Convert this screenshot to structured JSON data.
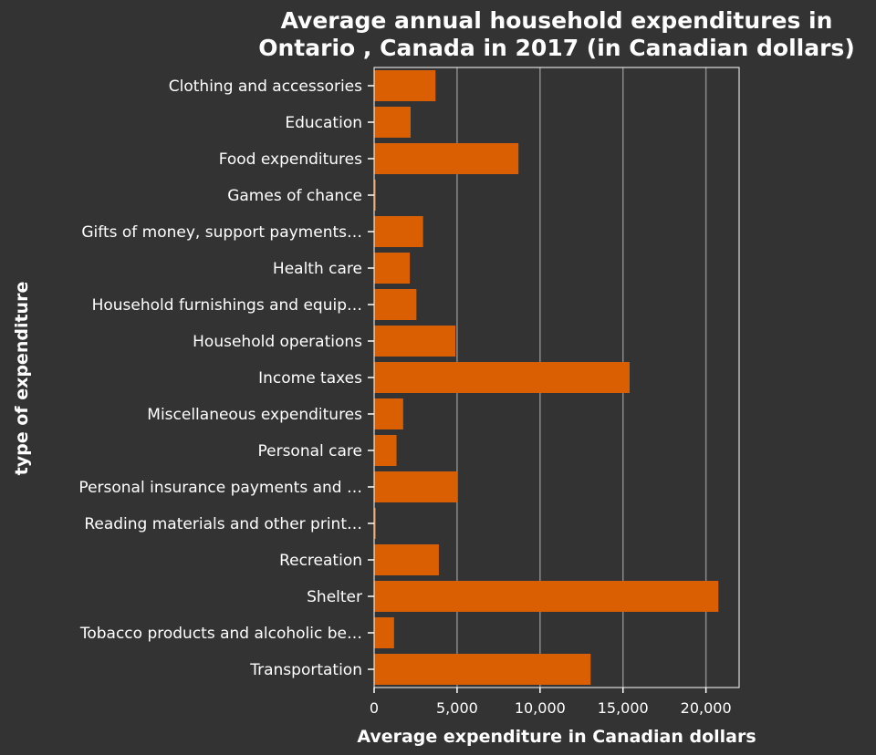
{
  "colors": {
    "background": "#333333",
    "bar": "#d95f02",
    "text": "#ffffff",
    "grid": "#8a8a8a",
    "axis": "#ffffff"
  },
  "chart_data": {
    "type": "bar",
    "orientation": "horizontal",
    "title_lines": [
      "Average annual household expenditures in",
      "Ontario , Canada in 2017 (in Canadian dollars)"
    ],
    "xlabel": "Average expenditure in Canadian dollars",
    "ylabel": "type of expenditure",
    "xlim": [
      0,
      22000
    ],
    "xticks": [
      0,
      5000,
      10000,
      15000,
      20000
    ],
    "xtick_labels": [
      "0",
      "5,000",
      "10,000",
      "15,000",
      "20,000"
    ],
    "grid": true,
    "categories": [
      "Clothing and accessories",
      "Education",
      "Food expenditures",
      "Games of chance",
      "Gifts of money, support payments…",
      "Health care",
      "Household furnishings and equip…",
      "Household operations",
      "Income taxes",
      "Miscellaneous expenditures",
      "Personal care",
      "Personal insurance payments and …",
      "Reading materials and other print…",
      "Recreation",
      "Shelter",
      "Tobacco products and alcoholic be…",
      "Transportation"
    ],
    "values": [
      3700,
      2200,
      8700,
      100,
      2950,
      2150,
      2550,
      4900,
      15400,
      1750,
      1350,
      5000,
      100,
      3900,
      20750,
      1200,
      13050
    ]
  }
}
